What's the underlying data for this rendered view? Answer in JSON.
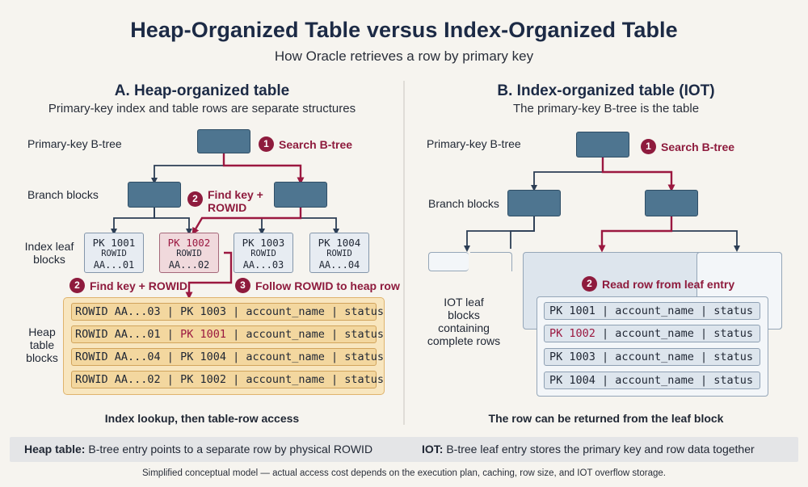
{
  "title": "Heap-Organized Table versus Index-Organized Table",
  "subtitle": "How Oracle retrieves a row by primary key",
  "left": {
    "heading": "A. Heap-organized table",
    "subheading": "Primary-key index and table rows are separate structures",
    "label_btree": "Primary-key B-tree",
    "label_branch": "Branch blocks",
    "label_leaf_line1": "Index leaf",
    "label_leaf_line2": "blocks",
    "label_heap_line1": "Heap",
    "label_heap_line2": "table",
    "label_heap_line3": "blocks",
    "leaves": [
      {
        "pk": "PK 1001",
        "rowid": "ROWID",
        "addr": "AA...01"
      },
      {
        "pk": "PK 1002",
        "rowid": "ROWID",
        "addr": "AA...02"
      },
      {
        "pk": "PK 1003",
        "rowid": "ROWID",
        "addr": "AA...03"
      },
      {
        "pk": "PK 1004",
        "rowid": "ROWID",
        "addr": "AA...04"
      }
    ],
    "step1": {
      "num": "1",
      "text": "Search B-tree"
    },
    "step2a": {
      "num": "2",
      "line1": "Find key +",
      "line2": "ROWID"
    },
    "step2b": {
      "num": "2",
      "text": "Find key + ROWID"
    },
    "step3": {
      "num": "3",
      "text": "Follow ROWID to heap row"
    },
    "heap_rows": [
      {
        "rowid": "ROWID AA...03",
        "sep1": " | ",
        "pk": "PK 1003",
        "rest": " | account_name | status"
      },
      {
        "rowid": "ROWID AA...01",
        "sep1": " | ",
        "pk": "PK 1001",
        "rest": " | account_name | status"
      },
      {
        "rowid": "ROWID AA...04",
        "sep1": " | ",
        "pk": "PK 1004",
        "rest": " | account_name | status"
      },
      {
        "rowid": "ROWID AA...02",
        "sep1": " | ",
        "pk": "PK 1002",
        "rest": " | account_name | status"
      }
    ],
    "caption": "Index lookup, then table-row access"
  },
  "right": {
    "heading": "B. Index-organized table (IOT)",
    "subheading": "The primary-key B-tree is the table",
    "label_btree": "Primary-key B-tree",
    "label_branch": "Branch blocks",
    "label_leaf_line1": "IOT leaf",
    "label_leaf_line2": "blocks",
    "label_leaf_line3": "containing",
    "label_leaf_line4": "complete rows",
    "step1": {
      "num": "1",
      "text": "Search B-tree"
    },
    "step2": {
      "num": "2",
      "text": "Read row from leaf entry"
    },
    "rows": [
      {
        "pk": "PK 1001",
        "rest": " | account_name | status"
      },
      {
        "pk": "PK 1002",
        "rest": " | account_name | status"
      },
      {
        "pk": "PK 1003",
        "rest": " | account_name | status"
      },
      {
        "pk": "PK 1004",
        "rest": " | account_name | status"
      }
    ],
    "caption": "The row can be returned from the leaf block"
  },
  "summary": {
    "heap_bold": "Heap table:",
    "heap_text": " B-tree entry points to a separate row by physical ROWID",
    "iot_bold": "IOT:",
    "iot_text": " B-tree leaf entry stores the primary key and row data together"
  },
  "footnote": "Simplified conceptual model — actual access cost depends on the execution plan, caching, row size, and IOT overflow storage.",
  "colors": {
    "node": "#4e7590",
    "accent": "#8e1b3d",
    "heap": "#f8e6bf",
    "iot": "#dde5ed"
  }
}
